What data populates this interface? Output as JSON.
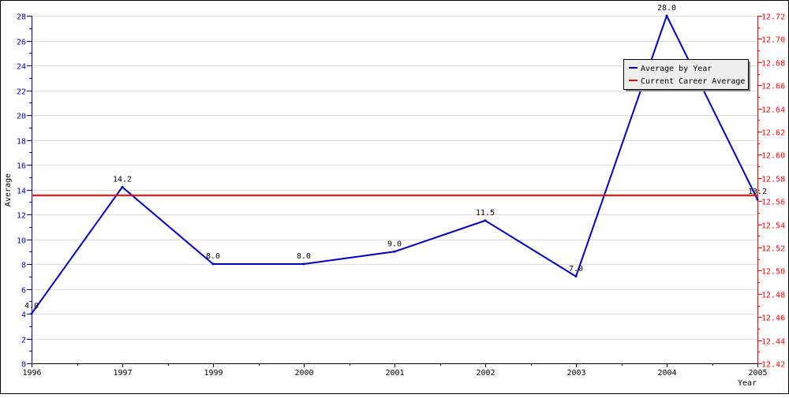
{
  "chart_data": {
    "type": "line",
    "xlabel": "Year",
    "ylabel": "Average",
    "categories": [
      "1996",
      "1997",
      "1999",
      "2000",
      "2001",
      "2002",
      "2003",
      "2004",
      "2005"
    ],
    "x_tick_labels": [
      "1996",
      "1997",
      "1999",
      "2000",
      "2001",
      "2002",
      "2003",
      "2004",
      "2005"
    ],
    "y_left": {
      "range": [
        0,
        28
      ],
      "ticks": [
        "0",
        "2",
        "4",
        "6",
        "8",
        "10",
        "12",
        "14",
        "16",
        "18",
        "20",
        "22",
        "24",
        "26",
        "28"
      ],
      "color": "#0000cc"
    },
    "y_right": {
      "range": [
        12.42,
        12.72
      ],
      "ticks": [
        "12.42",
        "12.44",
        "12.46",
        "12.48",
        "12.50",
        "12.52",
        "12.54",
        "12.56",
        "12.58",
        "12.60",
        "12.62",
        "12.64",
        "12.66",
        "12.68",
        "12.70",
        "12.72"
      ],
      "color": "#ff0000"
    },
    "series": [
      {
        "name": "Average by Year",
        "axis": "left",
        "color": "#0000cc",
        "values": [
          4.0,
          14.2,
          8.0,
          8.0,
          9.0,
          11.5,
          7.0,
          28.0,
          13.2
        ],
        "labels": [
          "4.0",
          "14.2",
          "8.0",
          "8.0",
          "9.0",
          "11.5",
          "7.0",
          "28.0",
          "13.2"
        ]
      },
      {
        "name": "Current Career Average",
        "axis": "right",
        "color": "#ff0000",
        "values": [
          12.565,
          12.565,
          12.565,
          12.565,
          12.565,
          12.565,
          12.565,
          12.565,
          12.565
        ]
      }
    ],
    "grid": true,
    "legend": {
      "position": "top-right"
    }
  }
}
